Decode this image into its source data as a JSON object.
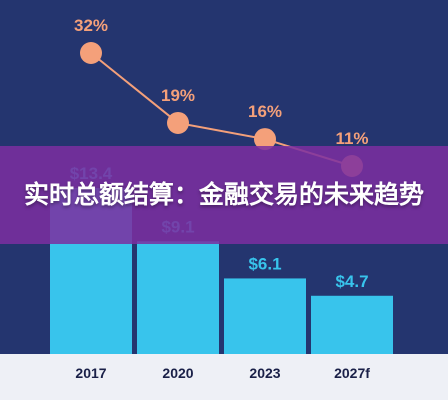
{
  "page": {
    "title": "实时总额结算：金融交易的未来趋势",
    "colors": {
      "background": "#24356f",
      "bar": "#38c4ec",
      "dot": "#f4a07a",
      "line": "#f4a07a",
      "bar_label": "#38c4ec",
      "pct_label": "#f4a07a",
      "axis_label": "#1a2048",
      "axis_strip": "#eef0f6",
      "banner": "#7b2ea0"
    }
  },
  "chart_data": {
    "type": "bar",
    "title": "",
    "xlabel": "",
    "ylabel": "",
    "categories": [
      "2017",
      "2020",
      "2023",
      "2027f"
    ],
    "series": [
      {
        "type": "bar",
        "values": [
          13.4,
          9.1,
          6.1,
          4.7
        ],
        "labels": [
          "$13.4",
          "$9.1",
          "$6.1",
          "$4.7"
        ]
      },
      {
        "type": "line",
        "values": [
          32,
          19,
          16,
          11
        ],
        "labels": [
          "32%",
          "19%",
          "16%",
          "11%"
        ]
      }
    ],
    "grid": false,
    "legend": "none"
  }
}
